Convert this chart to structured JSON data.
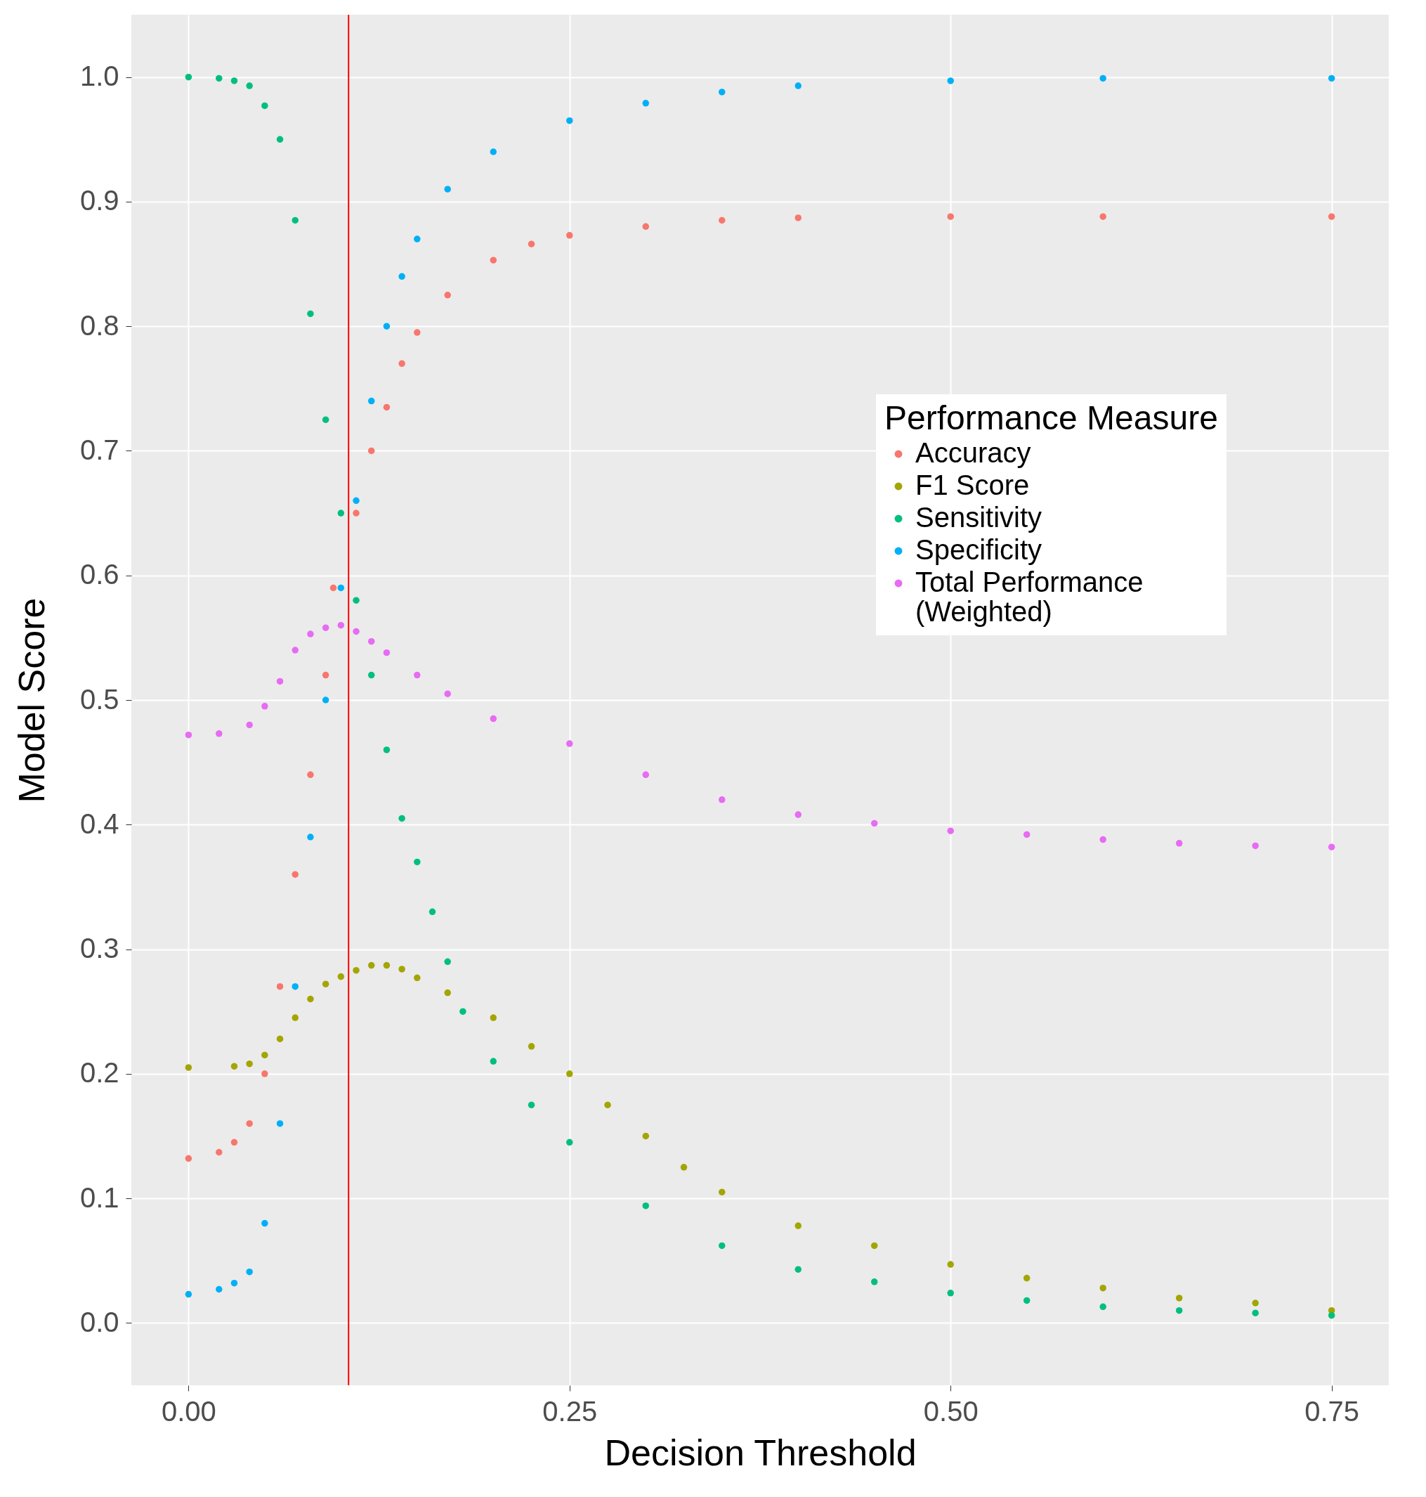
{
  "chart_data": {
    "type": "scatter",
    "xlabel": "Decision Threshold",
    "ylabel": "Model Score",
    "legend_title": "Performance Measure",
    "legend": "right",
    "grid": true,
    "marker": "circle",
    "xlim": [
      -0.0375,
      0.7875
    ],
    "ylim": [
      -0.05,
      1.05
    ],
    "xticks": [
      {
        "value": 0,
        "label": "0.00"
      },
      0.25,
      {
        "value": 0.5,
        "label": "0.50"
      },
      0.75
    ],
    "yticks": [
      {
        "value": 0,
        "label": "0.0"
      },
      0.1,
      0.2,
      0.3,
      0.4,
      0.5,
      0.6,
      0.7,
      0.8,
      0.9,
      {
        "value": 1,
        "label": "1.0"
      }
    ],
    "ref_lines": [
      {
        "axis": "x",
        "value": 0.105,
        "color": "#ff0000"
      }
    ],
    "series": [
      {
        "name": "Accuracy",
        "color": "#f8766d",
        "x": [
          0,
          0.02,
          0.03,
          0.04,
          0.05,
          0.06,
          0.07,
          0.08,
          0.09,
          0.095,
          0.11,
          0.12,
          0.13,
          0.14,
          0.15,
          0.17,
          0.2,
          0.225,
          0.25,
          0.3,
          0.35,
          0.4,
          0.5,
          0.6,
          0.75
        ],
        "values": [
          0.132,
          0.137,
          0.145,
          0.16,
          0.2,
          0.27,
          0.36,
          0.44,
          0.52,
          0.59,
          0.65,
          0.7,
          0.735,
          0.77,
          0.795,
          0.825,
          0.853,
          0.866,
          0.873,
          0.88,
          0.885,
          0.887,
          0.888,
          0.888,
          0.888
        ]
      },
      {
        "name": "F1 Score",
        "color": "#a3a500",
        "x": [
          0,
          0.03,
          0.04,
          0.05,
          0.06,
          0.07,
          0.08,
          0.09,
          0.1,
          0.11,
          0.12,
          0.13,
          0.14,
          0.15,
          0.17,
          0.2,
          0.225,
          0.25,
          0.275,
          0.3,
          0.325,
          0.35,
          0.4,
          0.45,
          0.5,
          0.55,
          0.6,
          0.65,
          0.7,
          0.75
        ],
        "values": [
          0.205,
          0.206,
          0.208,
          0.215,
          0.228,
          0.245,
          0.26,
          0.272,
          0.278,
          0.283,
          0.287,
          0.287,
          0.284,
          0.277,
          0.265,
          0.245,
          0.222,
          0.2,
          0.175,
          0.15,
          0.125,
          0.105,
          0.078,
          0.062,
          0.047,
          0.036,
          0.028,
          0.02,
          0.016,
          0.01
        ]
      },
      {
        "name": "Sensitivity",
        "color": "#00bf7d",
        "x": [
          0,
          0.02,
          0.03,
          0.04,
          0.05,
          0.06,
          0.07,
          0.08,
          0.09,
          0.1,
          0.11,
          0.12,
          0.13,
          0.14,
          0.15,
          0.16,
          0.17,
          0.18,
          0.2,
          0.225,
          0.25,
          0.3,
          0.35,
          0.4,
          0.45,
          0.5,
          0.55,
          0.6,
          0.65,
          0.7,
          0.75
        ],
        "values": [
          1.0,
          0.999,
          0.997,
          0.993,
          0.977,
          0.95,
          0.885,
          0.81,
          0.725,
          0.65,
          0.58,
          0.52,
          0.46,
          0.405,
          0.37,
          0.33,
          0.29,
          0.25,
          0.21,
          0.175,
          0.145,
          0.094,
          0.062,
          0.043,
          0.033,
          0.024,
          0.018,
          0.013,
          0.01,
          0.008,
          0.006
        ]
      },
      {
        "name": "Specificity",
        "color": "#00b0f6",
        "x": [
          0,
          0.02,
          0.03,
          0.04,
          0.05,
          0.06,
          0.07,
          0.08,
          0.09,
          0.1,
          0.11,
          0.12,
          0.13,
          0.14,
          0.15,
          0.17,
          0.2,
          0.25,
          0.3,
          0.35,
          0.4,
          0.5,
          0.6,
          0.75
        ],
        "values": [
          0.023,
          0.027,
          0.032,
          0.041,
          0.08,
          0.16,
          0.27,
          0.39,
          0.5,
          0.59,
          0.66,
          0.74,
          0.8,
          0.84,
          0.87,
          0.91,
          0.94,
          0.965,
          0.979,
          0.988,
          0.993,
          0.997,
          0.999,
          0.999
        ]
      },
      {
        "name": "Total Performance\n(Weighted)",
        "color": "#e76bf3",
        "x": [
          0,
          0.02,
          0.04,
          0.05,
          0.06,
          0.07,
          0.08,
          0.09,
          0.1,
          0.11,
          0.12,
          0.13,
          0.15,
          0.17,
          0.2,
          0.25,
          0.3,
          0.35,
          0.4,
          0.45,
          0.5,
          0.55,
          0.6,
          0.65,
          0.7,
          0.75
        ],
        "values": [
          0.472,
          0.473,
          0.48,
          0.495,
          0.515,
          0.54,
          0.553,
          0.558,
          0.56,
          0.555,
          0.547,
          0.538,
          0.52,
          0.505,
          0.485,
          0.465,
          0.44,
          0.42,
          0.408,
          0.401,
          0.395,
          0.392,
          0.388,
          0.385,
          0.383,
          0.382
        ]
      }
    ]
  }
}
